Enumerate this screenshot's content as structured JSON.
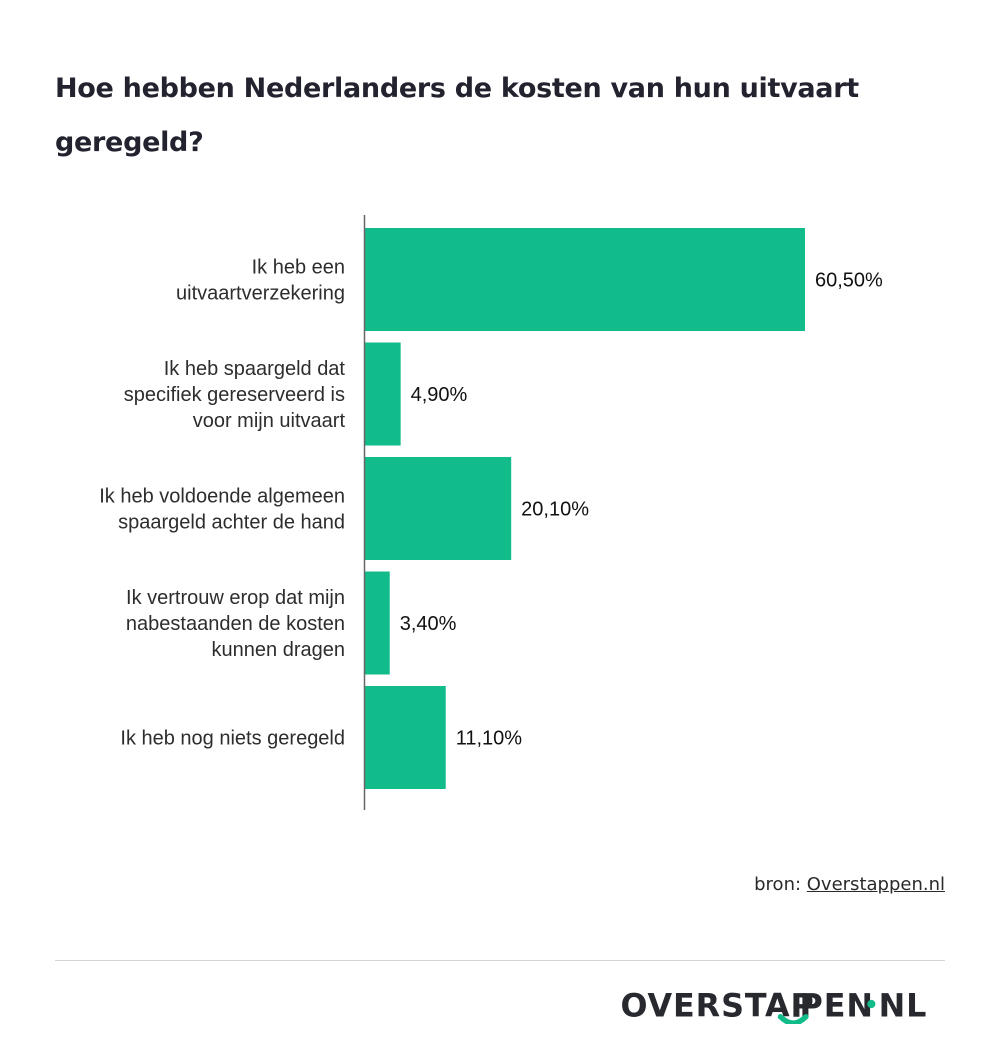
{
  "chart_data": {
    "type": "bar",
    "orientation": "horizontal",
    "title": "Hoe hebben Nederlanders de kosten van hun uitvaart geregeld?",
    "categories": [
      [
        "Ik heb een",
        "uitvaartverzekering"
      ],
      [
        "Ik heb spaargeld dat",
        "specifiek gereserveerd is",
        "voor mijn uitvaart"
      ],
      [
        "Ik heb voldoende algemeen",
        "spaargeld achter de hand"
      ],
      [
        "Ik vertrouw erop dat mijn",
        "nabestaanden de kosten",
        "kunnen dragen"
      ],
      [
        "Ik heb nog niets geregeld"
      ]
    ],
    "values": [
      60.5,
      4.9,
      20.1,
      3.4,
      11.1
    ],
    "value_labels": [
      "60,50%",
      "4,90%",
      "20,10%",
      "3,40%",
      "11,10%"
    ],
    "xlabel": "",
    "ylabel": "",
    "xlim": [
      0,
      60.5
    ],
    "grid": false,
    "legend": "none",
    "bar_color": "#12bb8a"
  },
  "source": {
    "prefix": "bron: ",
    "link_text": "Overstappen.nl"
  },
  "logo": {
    "text_left": "OVERSTAP",
    "text_middle": "PEN",
    "text_right": "NL",
    "accent_color": "#12bb8a"
  }
}
